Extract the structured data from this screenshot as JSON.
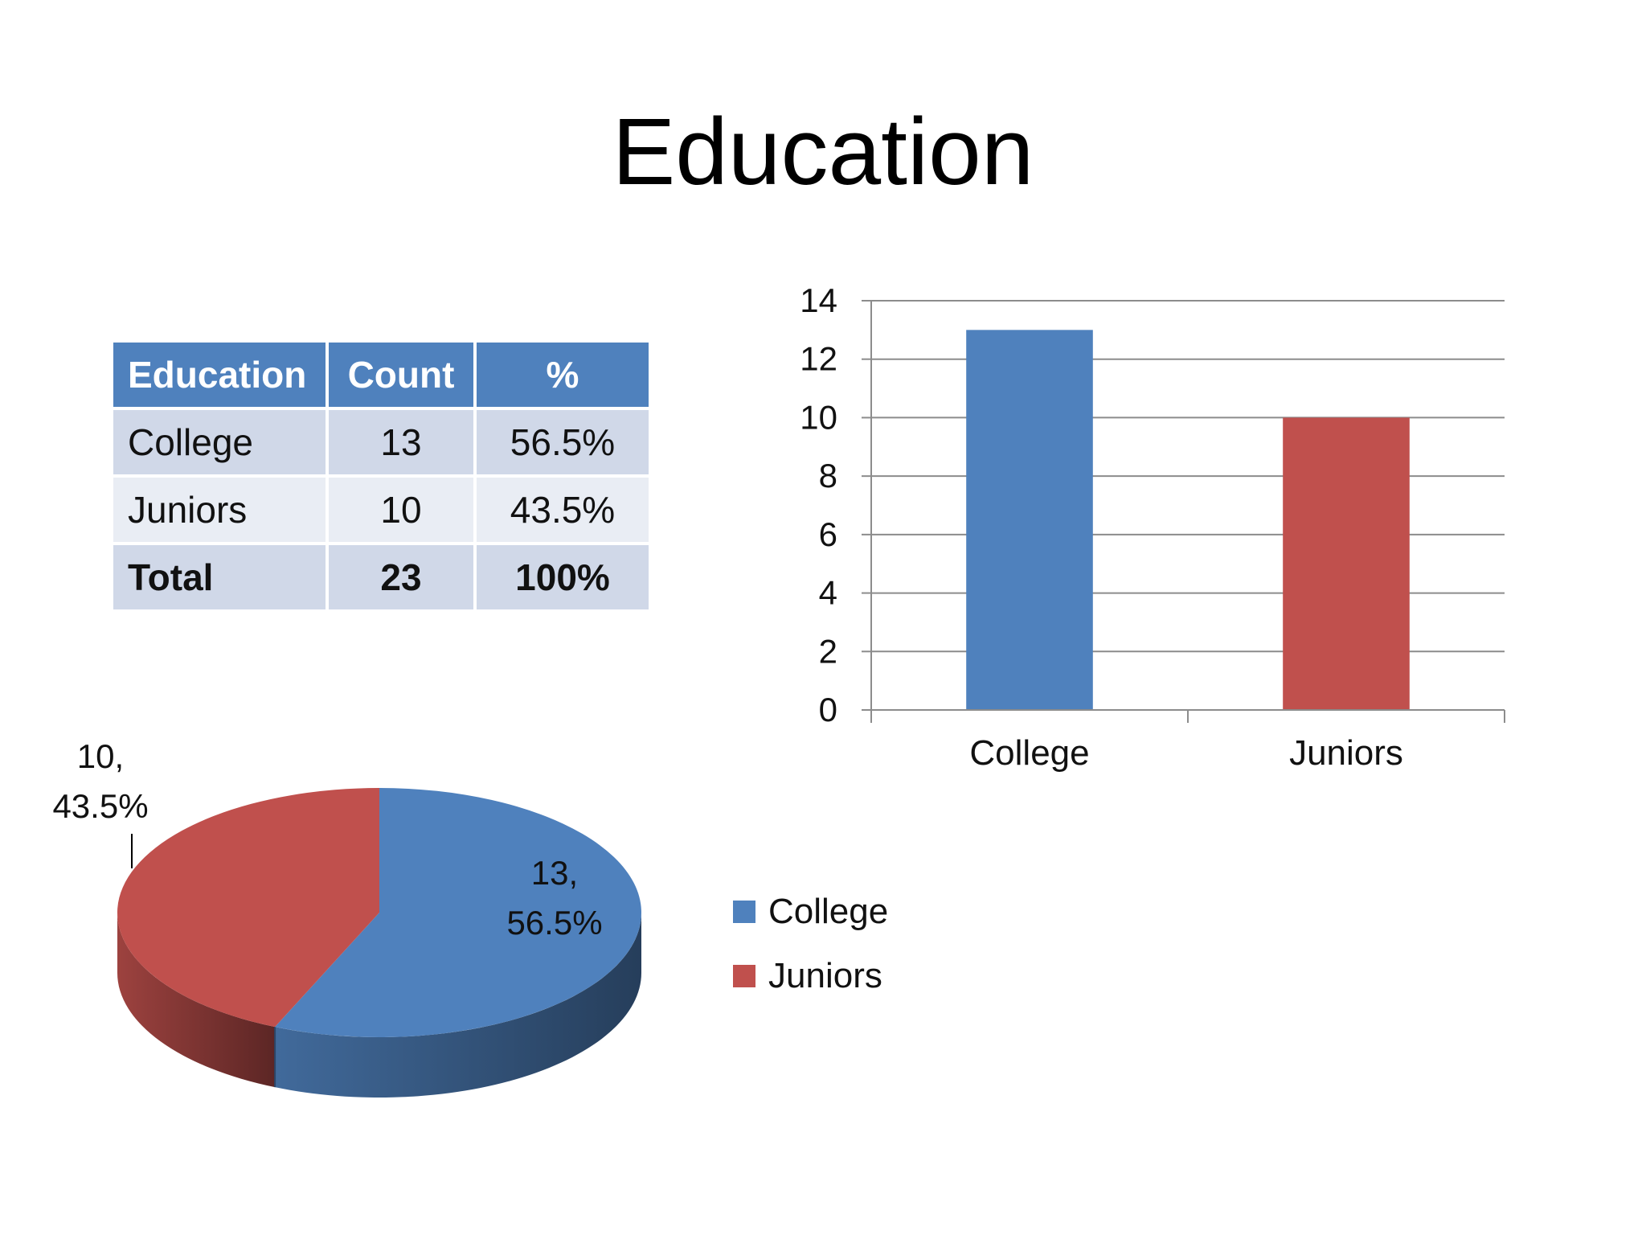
{
  "slide": {
    "title": "Education"
  },
  "table": {
    "headers": [
      "Education",
      "Count",
      "%"
    ],
    "rows": [
      [
        "College",
        "13",
        "56.5%"
      ],
      [
        "Juniors",
        "10",
        "43.5%"
      ],
      [
        "Total",
        "23",
        "100%"
      ]
    ]
  },
  "colors": {
    "college": "#4f81bd",
    "juniors": "#c0504d",
    "header": "#4f81bd",
    "grid": "#8c8c8c"
  },
  "chart_data": [
    {
      "type": "bar",
      "categories": [
        "College",
        "Juniors"
      ],
      "values": [
        13,
        10
      ],
      "colors": [
        "#4f81bd",
        "#c0504d"
      ],
      "ylim": [
        0,
        14
      ],
      "yticks": [
        0,
        2,
        4,
        6,
        8,
        10,
        12,
        14
      ],
      "grid": true,
      "legend": "none"
    },
    {
      "type": "pie",
      "categories": [
        "College",
        "Juniors"
      ],
      "values": [
        13,
        10
      ],
      "percentages": [
        "56.5%",
        "43.5%"
      ],
      "data_labels": [
        [
          "13,",
          "56.5%"
        ],
        [
          "10,",
          "43.5%"
        ]
      ],
      "colors": [
        "#4f81bd",
        "#c0504d"
      ],
      "legend": "right",
      "legend_entries": [
        "College",
        "Juniors"
      ],
      "style": "3d"
    }
  ]
}
